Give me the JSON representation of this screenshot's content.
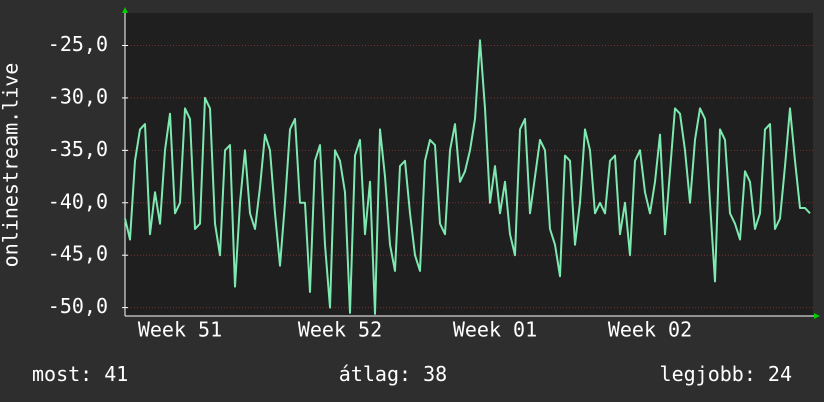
{
  "chart_data": {
    "type": "line",
    "ylabel": "onlinestream.live",
    "series": [
      {
        "name": "onlinestream.live",
        "color": "#7de8b0",
        "values": [
          -41.5,
          -43.5,
          -36,
          -33,
          -32.5,
          -43,
          -39,
          -42,
          -35,
          -31.5,
          -41,
          -40,
          -31,
          -32,
          -42.5,
          -42,
          -30,
          -31,
          -42,
          -45,
          -35,
          -34.5,
          -48,
          -40,
          -35,
          -41,
          -42.5,
          -38.5,
          -33.5,
          -35,
          -41,
          -46,
          -40,
          -33,
          -32,
          -40,
          -40,
          -48.5,
          -36,
          -34.5,
          -44,
          -50,
          -35,
          -36,
          -39,
          -50.5,
          -35.5,
          -34,
          -43,
          -38,
          -50.6,
          -33,
          -37.5,
          -44,
          -46.5,
          -36.5,
          -36,
          -41,
          -45,
          -46.5,
          -36,
          -34,
          -34.5,
          -42,
          -43,
          -35,
          -32.5,
          -38,
          -37,
          -35,
          -32,
          -24.5,
          -31,
          -40,
          -36.5,
          -41,
          -38,
          -43,
          -45,
          -33,
          -32,
          -41,
          -37.5,
          -34,
          -35,
          -42.5,
          -44,
          -47,
          -35.5,
          -36,
          -44,
          -40,
          -33,
          -35,
          -41,
          -40,
          -41,
          -36,
          -35.5,
          -43,
          -40,
          -45,
          -36,
          -35,
          -39,
          -41,
          -38,
          -33.5,
          -43,
          -37,
          -31,
          -31.5,
          -35,
          -40,
          -34,
          -31,
          -32,
          -40,
          -47.5,
          -33,
          -34,
          -41,
          -42,
          -43.5,
          -37,
          -38,
          -42.5,
          -41,
          -33,
          -32.5,
          -42.5,
          -41.5,
          -36.5,
          -31,
          -36,
          -40.5,
          -40.5,
          -41
        ]
      }
    ],
    "xlim": [
      0,
      137
    ],
    "xticks": [
      {
        "value": 11,
        "label": "Week 51"
      },
      {
        "value": 43,
        "label": "Week 52"
      },
      {
        "value": 74,
        "label": "Week 01"
      },
      {
        "value": 105,
        "label": "Week 02"
      }
    ],
    "ylim": [
      -50.8,
      -21.9
    ],
    "yticks": [
      {
        "value": -50,
        "label": "-50,0"
      },
      {
        "value": -45,
        "label": "-45,0"
      },
      {
        "value": -40,
        "label": "-40,0"
      },
      {
        "value": -35,
        "label": "-35,0"
      },
      {
        "value": -30,
        "label": "-30,0"
      },
      {
        "value": -25,
        "label": "-25,0"
      }
    ],
    "grid": true,
    "stats": [
      {
        "label": "most:",
        "value": 41
      },
      {
        "label": "átlag:",
        "value": 38
      },
      {
        "label": "legjobb:",
        "value": 24
      }
    ]
  }
}
